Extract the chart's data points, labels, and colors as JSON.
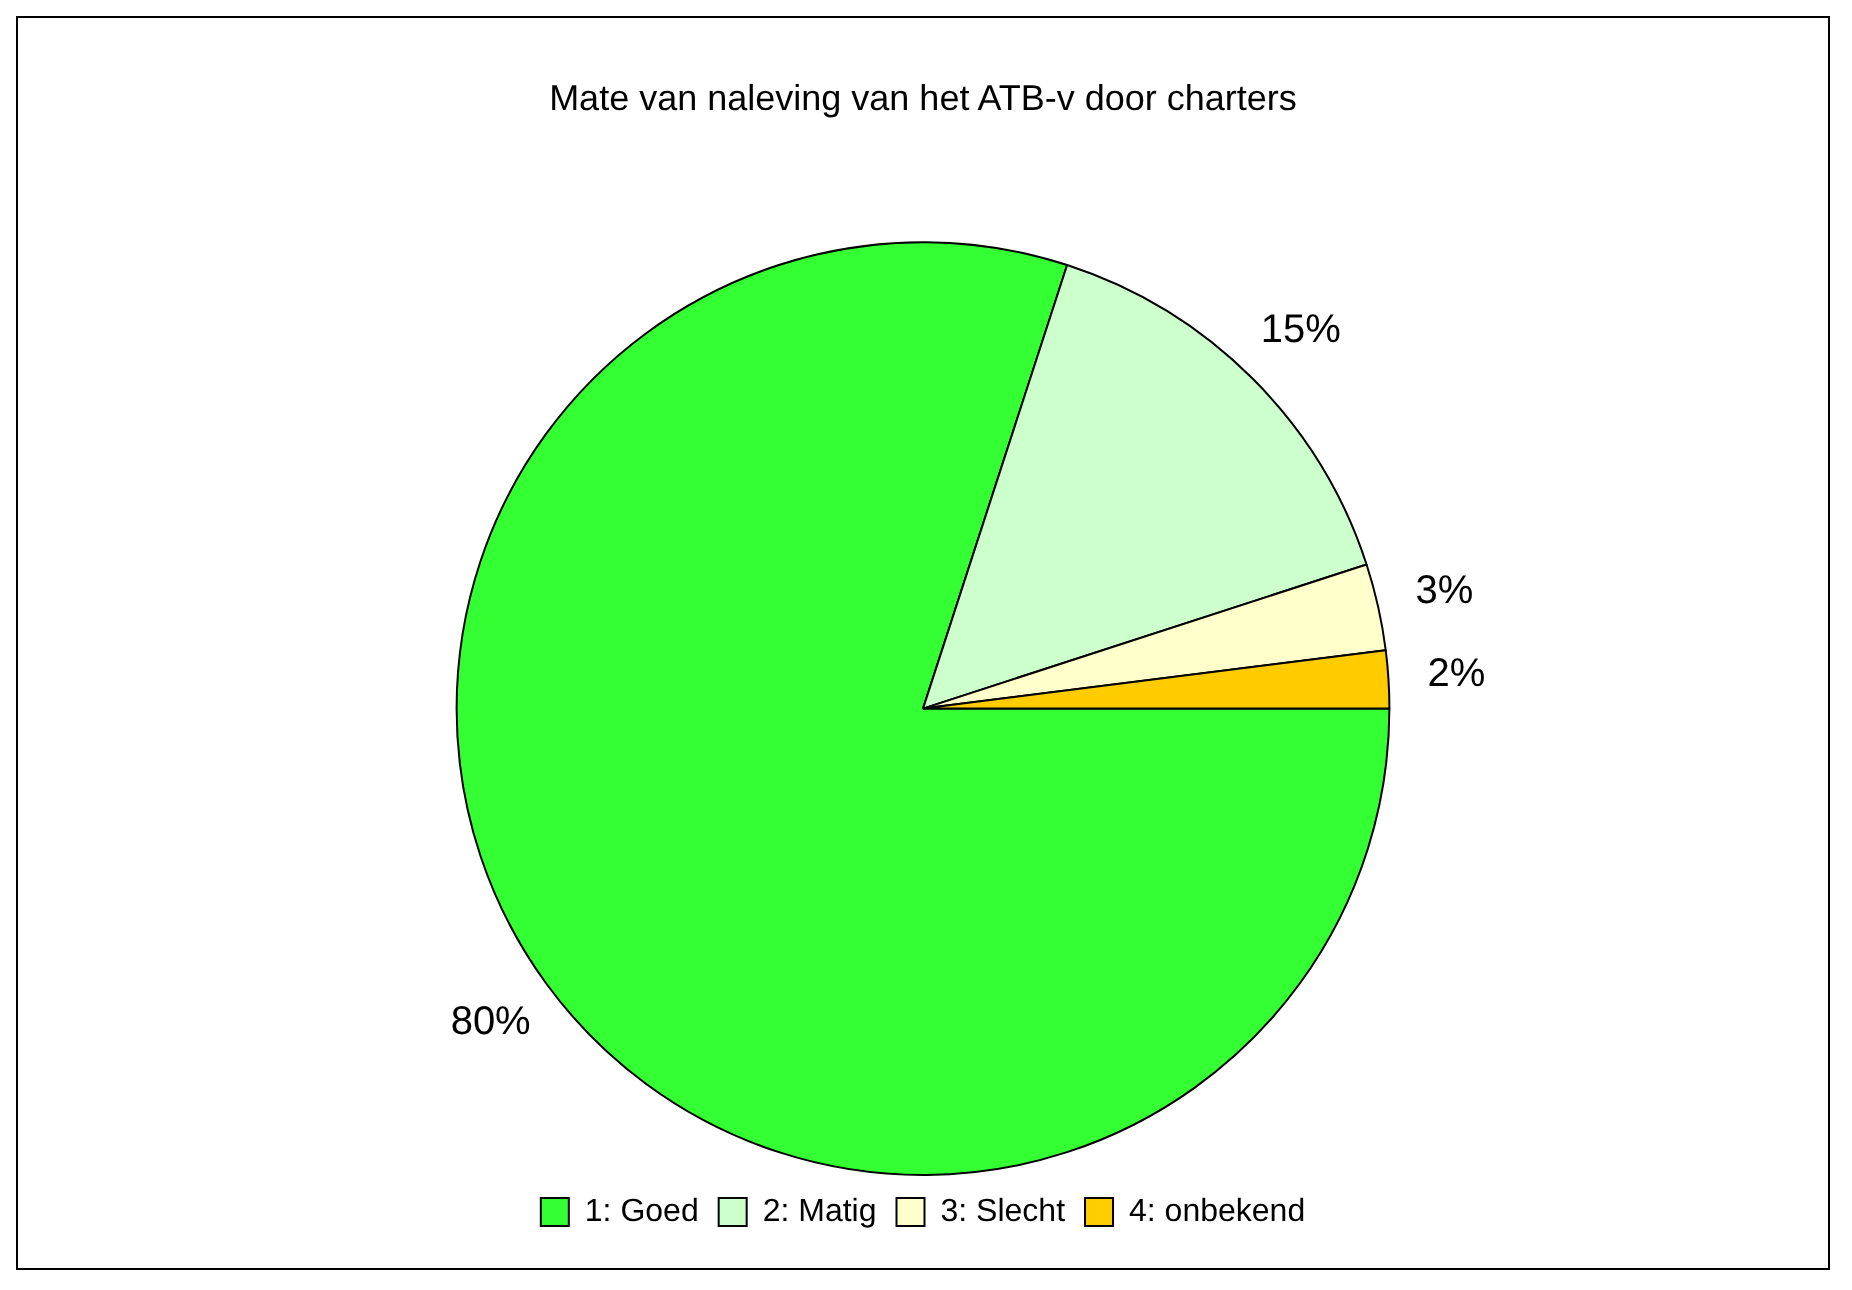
{
  "chart_data": {
    "type": "pie",
    "title": "Mate van naleving van het ATB-v door charters",
    "categories": [
      "1: Goed",
      "2: Matig",
      "3: Slecht",
      "4: onbekend"
    ],
    "values": [
      80,
      15,
      3,
      2
    ],
    "colors": [
      "#33ff33",
      "#ccffcc",
      "#ffffcc",
      "#ffcc00"
    ],
    "value_labels": [
      "80%",
      "15%",
      "3%",
      "2%"
    ],
    "legend": "bottom"
  }
}
